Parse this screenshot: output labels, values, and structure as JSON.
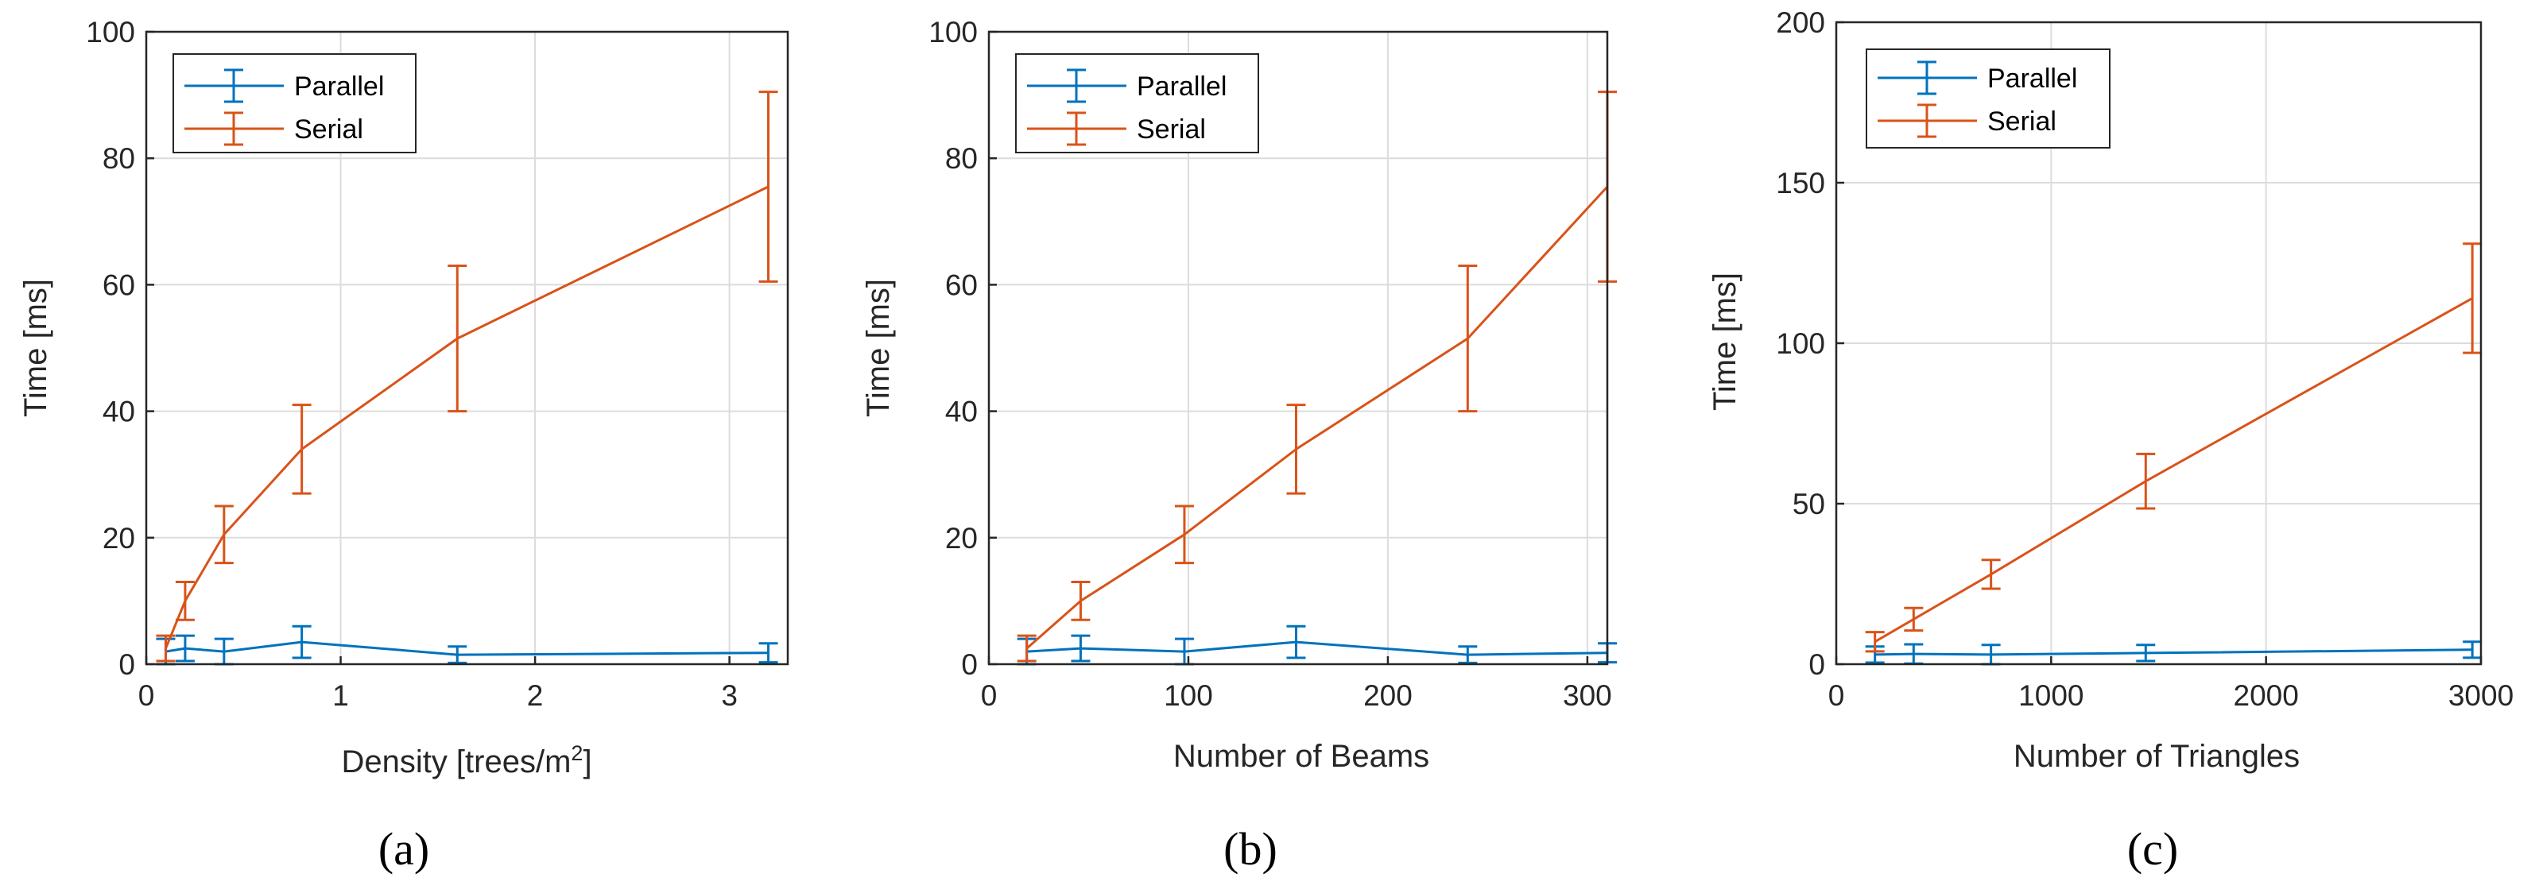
{
  "colors": {
    "parallel": "#0072BD",
    "serial": "#D95319",
    "axis": "#262626",
    "grid": "#dcdcdc"
  },
  "chart_data": [
    {
      "type": "line",
      "caption": "(a)",
      "xlabel": "Density [trees/m",
      "xlabel_sup": "2",
      "xlabel_end": "]",
      "ylabel": "Time [ms]",
      "xlim": [
        0,
        3.3
      ],
      "ylim": [
        0,
        100
      ],
      "xticks": [
        0,
        1,
        2,
        3
      ],
      "xtick_labels": [
        "0",
        "1",
        "2",
        "3"
      ],
      "yticks": [
        0,
        20,
        40,
        60,
        80,
        100
      ],
      "ytick_labels": [
        "0",
        "20",
        "40",
        "60",
        "80",
        "100"
      ],
      "grid": true,
      "legend_position": "top-left",
      "series": [
        {
          "name": "Parallel",
          "color": "#0072BD",
          "x": [
            0.1,
            0.2,
            0.4,
            0.8,
            1.6,
            3.2
          ],
          "y": [
            2.0,
            2.5,
            2.0,
            3.5,
            1.5,
            1.8
          ],
          "err": [
            2.0,
            2.0,
            2.0,
            2.5,
            1.3,
            1.5
          ]
        },
        {
          "name": "Serial",
          "color": "#D95319",
          "x": [
            0.1,
            0.2,
            0.4,
            0.8,
            1.6,
            3.2
          ],
          "y": [
            2.5,
            10.0,
            20.5,
            34.0,
            51.5,
            75.5
          ],
          "err": [
            2.0,
            3.0,
            4.5,
            7.0,
            11.5,
            15.0
          ]
        }
      ]
    },
    {
      "type": "line",
      "caption": "(b)",
      "xlabel": "Number of Beams",
      "xlabel_sup": "",
      "xlabel_end": "",
      "ylabel": "Time [ms]",
      "xlim": [
        0,
        310
      ],
      "ylim": [
        0,
        100
      ],
      "xticks": [
        0,
        100,
        200,
        300
      ],
      "xtick_labels": [
        "0",
        "100",
        "200",
        "300"
      ],
      "yticks": [
        0,
        20,
        40,
        60,
        80,
        100
      ],
      "ytick_labels": [
        "0",
        "20",
        "40",
        "60",
        "80",
        "100"
      ],
      "grid": true,
      "legend_position": "top-left",
      "series": [
        {
          "name": "Parallel",
          "color": "#0072BD",
          "x": [
            19,
            46,
            98,
            154,
            240,
            310
          ],
          "y": [
            2.0,
            2.5,
            2.0,
            3.5,
            1.5,
            1.8
          ],
          "err": [
            2.0,
            2.0,
            2.0,
            2.5,
            1.3,
            1.5
          ]
        },
        {
          "name": "Serial",
          "color": "#D95319",
          "x": [
            19,
            46,
            98,
            154,
            240,
            310
          ],
          "y": [
            2.5,
            10.0,
            20.5,
            34.0,
            51.5,
            75.5
          ],
          "err": [
            2.0,
            3.0,
            4.5,
            7.0,
            11.5,
            15.0
          ]
        }
      ]
    },
    {
      "type": "line",
      "caption": "(c)",
      "xlabel": "Number of Triangles",
      "xlabel_sup": "",
      "xlabel_end": "",
      "ylabel": "Time [ms]",
      "xlim": [
        0,
        3000
      ],
      "ylim": [
        0,
        200
      ],
      "xticks": [
        0,
        1000,
        2000,
        3000
      ],
      "xtick_labels": [
        "0",
        "1000",
        "2000",
        "3000"
      ],
      "yticks": [
        0,
        50,
        100,
        150,
        200
      ],
      "ytick_labels": [
        "0",
        "50",
        "100",
        "150",
        "200"
      ],
      "grid": true,
      "legend_position": "top-left",
      "series": [
        {
          "name": "Parallel",
          "color": "#0072BD",
          "x": [
            180,
            360,
            720,
            1440,
            2960
          ],
          "y": [
            3.0,
            3.2,
            3.0,
            3.5,
            4.5
          ],
          "err": [
            2.5,
            3.0,
            3.0,
            2.5,
            2.5
          ]
        },
        {
          "name": "Serial",
          "color": "#D95319",
          "x": [
            180,
            360,
            720,
            1440,
            2960
          ],
          "y": [
            7.0,
            14.0,
            28.0,
            57.0,
            114.0
          ],
          "err": [
            3.0,
            3.5,
            4.5,
            8.5,
            17.0
          ]
        }
      ]
    }
  ]
}
